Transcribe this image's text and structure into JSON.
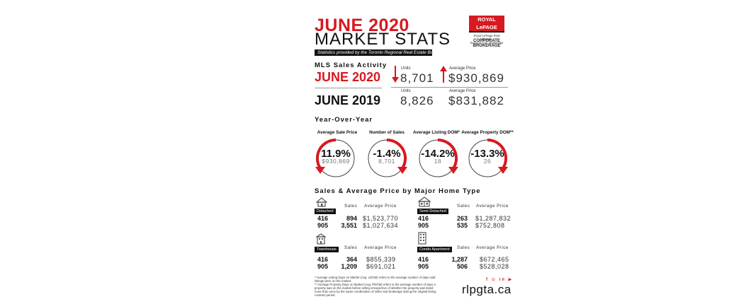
{
  "header": {
    "title_line1": "JUNE 2020",
    "title_line2": "MARKET STATS",
    "source_note": "Statistics provided by the Toronto Regional Real Estate Board"
  },
  "logo": {
    "brand_line1": "ROYAL LePAGE",
    "brand_sub1": "Royal LePage Real Estate",
    "brand_sub2": "Services Ltd., Brokerage",
    "corp_line1": "CORPORATE",
    "corp_line2": "BROKERAGE"
  },
  "mls": {
    "heading": "MLS Sales Activity",
    "current_year": "JUNE 2020",
    "previous_year": "JUNE 2019",
    "units_label": "Units",
    "avg_price_label": "Average Price",
    "current_units": "8,701",
    "current_avg_price": "$930,869",
    "previous_units": "8,826",
    "previous_avg_price": "$831,882"
  },
  "yoy": {
    "heading": "Year-Over-Year",
    "items": [
      {
        "label": "Average Sale Price",
        "pct": "11.9%",
        "value": "$930,869",
        "direction": "up"
      },
      {
        "label": "Number of Sales",
        "pct": "-1.4%",
        "value": "8,701",
        "direction": "down"
      },
      {
        "label": "Average Listing DOM*",
        "pct": "-14.2%",
        "value": "18",
        "direction": "down"
      },
      {
        "label": "Average Property DOM**",
        "pct": "-13.3%",
        "value": "26",
        "direction": "down"
      }
    ]
  },
  "home_types": {
    "heading": "Sales & Average Price by Major Home Type",
    "sales_label": "Sales",
    "avg_price_label": "Average Price",
    "types": [
      {
        "name": "Detached",
        "icon": "house-icon",
        "rows": [
          {
            "code": "416",
            "sales": "894",
            "price": "$1,523,770"
          },
          {
            "code": "905",
            "sales": "3,551",
            "price": "$1,027,634"
          }
        ]
      },
      {
        "name": "Semi-Detached",
        "icon": "semi-detached-icon",
        "rows": [
          {
            "code": "416",
            "sales": "263",
            "price": "$1,287,832"
          },
          {
            "code": "905",
            "sales": "535",
            "price": "$752,808"
          }
        ]
      },
      {
        "name": "Townhouse",
        "icon": "townhouse-icon",
        "rows": [
          {
            "code": "416",
            "sales": "364",
            "price": "$855,339"
          },
          {
            "code": "905",
            "sales": "1,209",
            "price": "$691,021"
          }
        ]
      },
      {
        "name": "Condo Apartment",
        "icon": "condo-icon",
        "rows": [
          {
            "code": "416",
            "sales": "1,287",
            "price": "$672,465"
          },
          {
            "code": "905",
            "sales": "506",
            "price": "$528,028"
          }
        ]
      }
    ]
  },
  "footer": {
    "note1": "* Average Listing Days on Market (Avg. LDOM) refers to the average number of days sold listings were on the market.",
    "note2": "** Average Property Days on Market (Avg. PDOM) refers to the average number of days a property was on the market before selling irrespective of whether the property was listed more than once by the same combination of seller and brokerage during the original listing contract period.",
    "social": "f ◎ in ▶",
    "website": "rlpgta.ca"
  },
  "colors": {
    "accent": "#d71920",
    "text": "#111111",
    "muted": "#777777"
  }
}
